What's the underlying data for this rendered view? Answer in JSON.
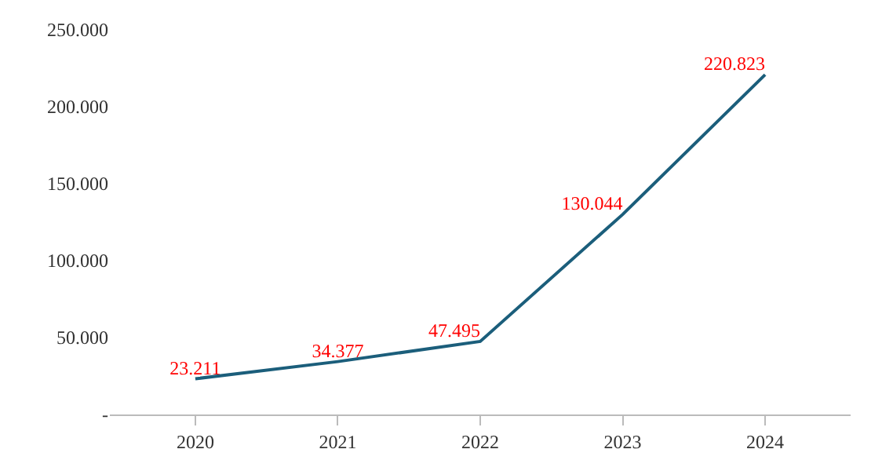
{
  "chart_data": {
    "type": "line",
    "categories": [
      "2020",
      "2021",
      "2022",
      "2023",
      "2024"
    ],
    "series": [
      {
        "color": "#1b5e7b",
        "values": [
          23211,
          34377,
          47495,
          130044,
          220823
        ],
        "value_labels": [
          "23.211",
          "34.377",
          "47.495",
          "130.044",
          "220.823"
        ]
      }
    ],
    "ylim": [
      0,
      250000
    ],
    "yticks": [
      {
        "value": 0,
        "label": "-"
      },
      {
        "value": 50000,
        "label": "50.000"
      },
      {
        "value": 100000,
        "label": "100.000"
      },
      {
        "value": 150000,
        "label": "150.000"
      },
      {
        "value": 200000,
        "label": "200.000"
      },
      {
        "value": 250000,
        "label": "250.000"
      }
    ],
    "legend": false,
    "marker": "none",
    "line_style": "solid"
  }
}
